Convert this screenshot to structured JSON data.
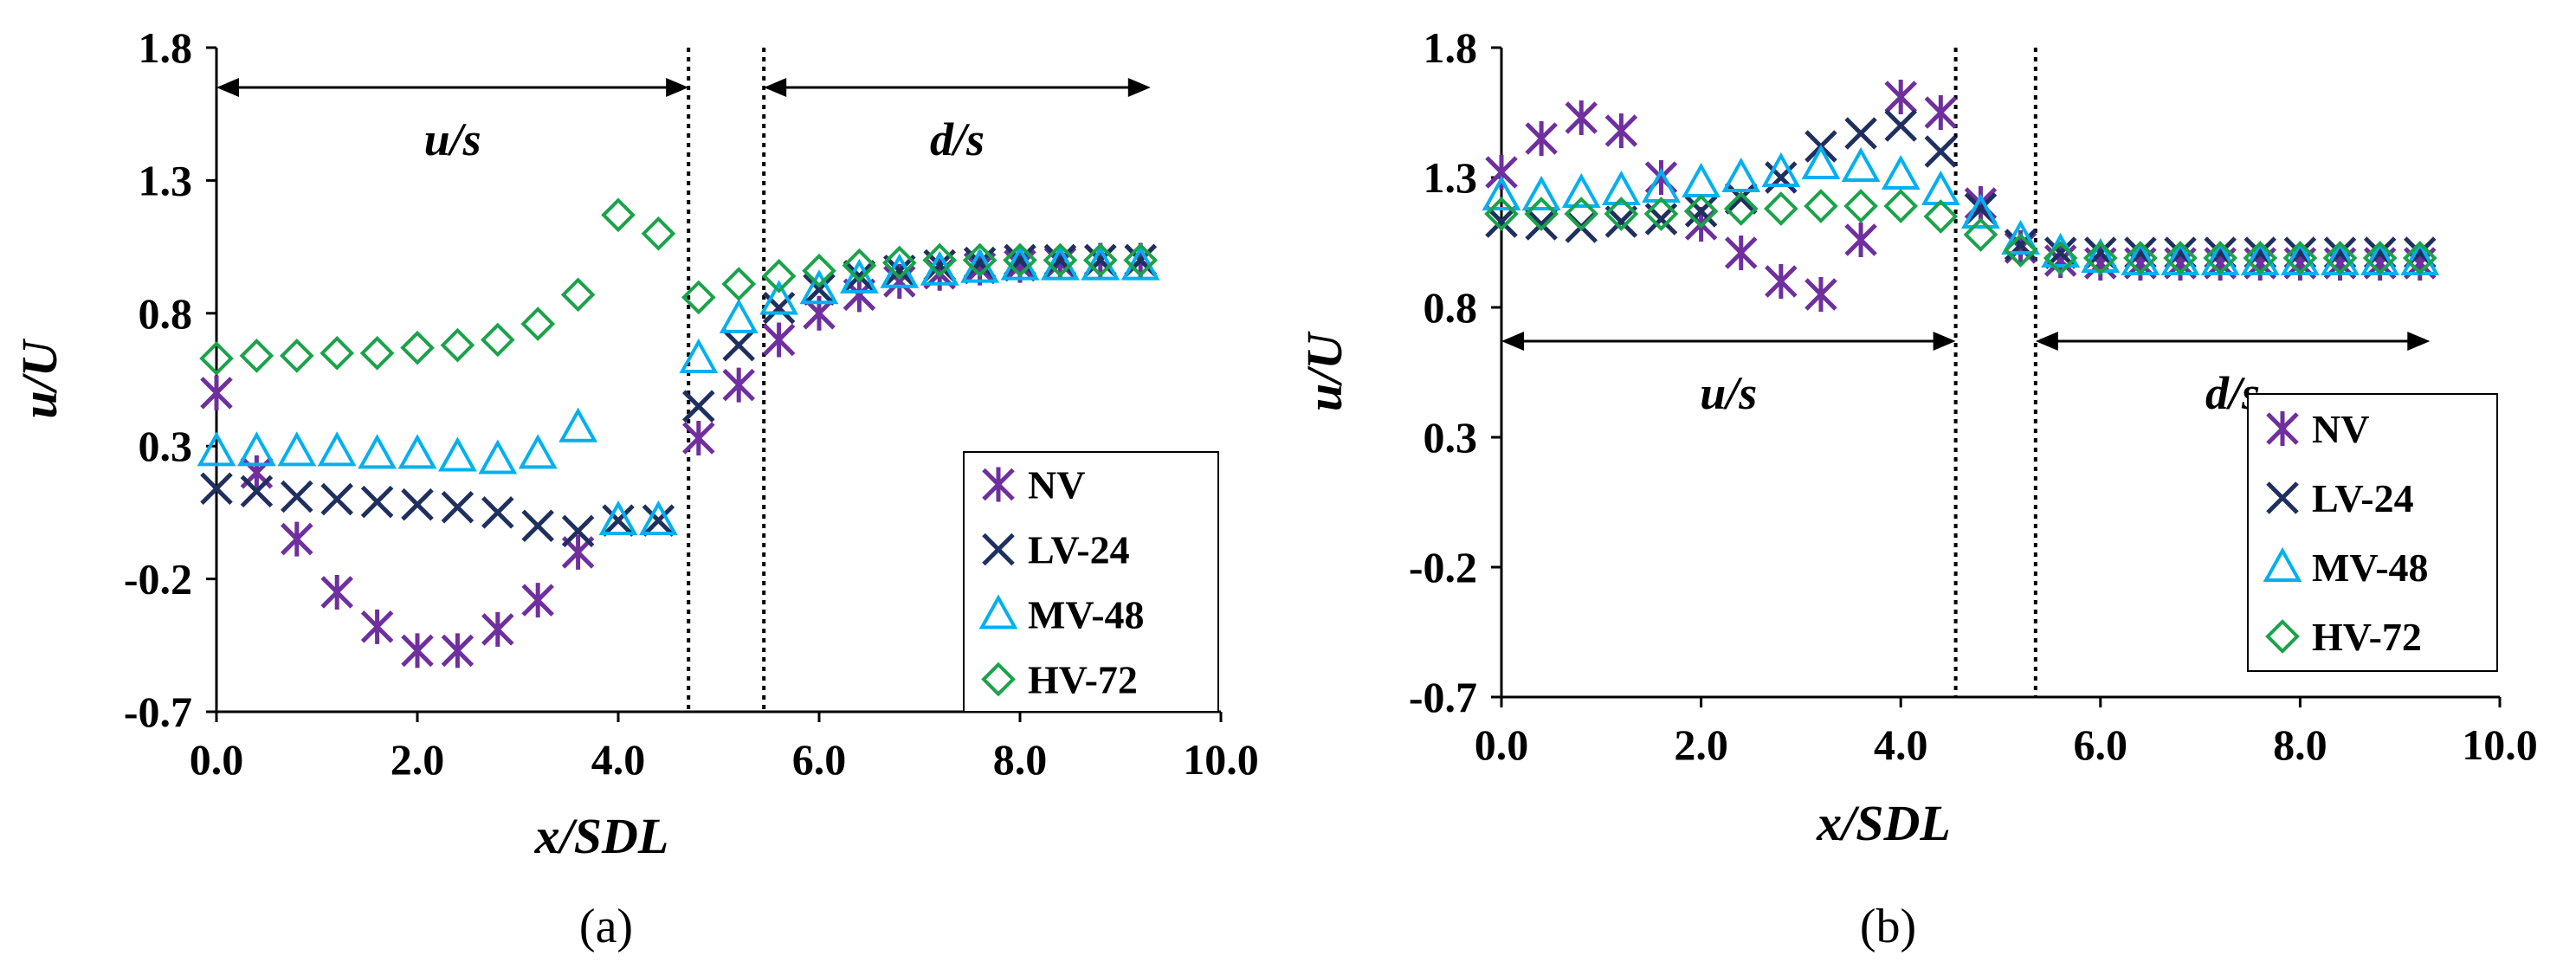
{
  "chart_data": [
    {
      "type": "scatter",
      "panel_label": "(a)",
      "xlabel": "x/SDL",
      "ylabel": "u/U",
      "xlim": [
        0,
        10
      ],
      "ylim": [
        -0.7,
        1.8
      ],
      "xticks": [
        "0.0",
        "2.0",
        "4.0",
        "6.0",
        "8.0",
        "10.0"
      ],
      "yticks": [
        "-0.7",
        "-0.2",
        "0.3",
        "0.8",
        "1.3",
        "1.8"
      ],
      "legend_position": "bottom-right",
      "vlines": [
        4.7,
        5.45
      ],
      "regions": [
        {
          "label": "u/s",
          "from": 0.0,
          "to": 4.7,
          "y": 1.65
        },
        {
          "label": "d/s",
          "from": 5.45,
          "to": 9.3,
          "y": 1.65
        }
      ],
      "series": [
        {
          "name": "NV",
          "marker": "asterisk",
          "color": "#6f2f9f",
          "x": [
            0.0,
            0.4,
            0.8,
            1.2,
            1.6,
            2.0,
            2.4,
            2.8,
            3.2,
            3.6,
            4.8,
            5.2,
            5.6,
            6.0,
            6.4,
            6.8,
            7.2,
            7.6,
            8.0,
            8.4,
            8.8,
            9.2
          ],
          "y": [
            0.5,
            0.2,
            -0.05,
            -0.25,
            -0.38,
            -0.47,
            -0.47,
            -0.39,
            -0.28,
            -0.1,
            0.33,
            0.53,
            0.7,
            0.8,
            0.87,
            0.92,
            0.95,
            0.97,
            0.98,
            0.99,
            1.0,
            1.0
          ]
        },
        {
          "name": "LV-24",
          "marker": "x",
          "color": "#1f2f5f",
          "x": [
            0.0,
            0.4,
            0.8,
            1.2,
            1.6,
            2.0,
            2.4,
            2.8,
            3.2,
            3.6,
            4.0,
            4.4,
            4.8,
            5.2,
            5.6,
            6.0,
            6.4,
            6.8,
            7.2,
            7.6,
            8.0,
            8.4,
            8.8,
            9.2
          ],
          "y": [
            0.14,
            0.13,
            0.11,
            0.1,
            0.09,
            0.08,
            0.07,
            0.05,
            0.0,
            -0.02,
            0.02,
            0.02,
            0.45,
            0.68,
            0.82,
            0.89,
            0.94,
            0.96,
            0.98,
            0.99,
            1.0,
            1.0,
            1.0,
            1.0
          ]
        },
        {
          "name": "MV-48",
          "marker": "triangle",
          "color": "#00b0f0",
          "x": [
            0.0,
            0.4,
            0.8,
            1.2,
            1.6,
            2.0,
            2.4,
            2.8,
            3.2,
            3.6,
            4.0,
            4.4,
            4.8,
            5.2,
            5.6,
            6.0,
            6.4,
            6.8,
            7.2,
            7.6,
            8.0,
            8.4,
            8.8,
            9.2
          ],
          "y": [
            0.28,
            0.28,
            0.28,
            0.28,
            0.27,
            0.27,
            0.26,
            0.25,
            0.27,
            0.37,
            0.02,
            0.02,
            0.63,
            0.78,
            0.85,
            0.89,
            0.93,
            0.95,
            0.96,
            0.97,
            0.98,
            0.98,
            0.98,
            0.98
          ]
        },
        {
          "name": "HV-72",
          "marker": "diamond",
          "color": "#1aa34a",
          "x": [
            0.0,
            0.4,
            0.8,
            1.2,
            1.6,
            2.0,
            2.4,
            2.8,
            3.2,
            3.6,
            4.0,
            4.4,
            4.8,
            5.2,
            5.6,
            6.0,
            6.4,
            6.8,
            7.2,
            7.6,
            8.0,
            8.4,
            8.8,
            9.2
          ],
          "y": [
            0.63,
            0.64,
            0.64,
            0.65,
            0.65,
            0.67,
            0.68,
            0.7,
            0.76,
            0.87,
            1.17,
            1.1,
            0.86,
            0.91,
            0.94,
            0.96,
            0.98,
            0.99,
            1.0,
            1.0,
            1.0,
            1.0,
            1.0,
            1.0
          ]
        }
      ]
    },
    {
      "type": "scatter",
      "panel_label": "(b)",
      "xlabel": "x/SDL",
      "ylabel": "u/U",
      "xlim": [
        0,
        10
      ],
      "ylim": [
        -0.7,
        1.8
      ],
      "xticks": [
        "0.0",
        "2.0",
        "4.0",
        "6.0",
        "8.0",
        "10.0"
      ],
      "yticks": [
        "-0.7",
        "-0.2",
        "0.3",
        "0.8",
        "1.3",
        "1.8"
      ],
      "legend_position": "bottom-right",
      "vlines": [
        4.55,
        5.35
      ],
      "regions": [
        {
          "label": "u/s",
          "from": 0.0,
          "to": 4.55,
          "y": 0.67
        },
        {
          "label": "d/s",
          "from": 5.35,
          "to": 9.3,
          "y": 0.67
        }
      ],
      "series": [
        {
          "name": "NV",
          "marker": "asterisk",
          "color": "#6f2f9f",
          "x": [
            0.0,
            0.4,
            0.8,
            1.2,
            1.6,
            2.0,
            2.4,
            2.8,
            3.2,
            3.6,
            4.0,
            4.4,
            4.8,
            5.2,
            5.6,
            6.0,
            6.4,
            6.8,
            7.2,
            7.6,
            8.0,
            8.4,
            8.8,
            9.2
          ],
          "y": [
            1.32,
            1.45,
            1.53,
            1.48,
            1.3,
            1.12,
            1.01,
            0.9,
            0.85,
            1.06,
            1.61,
            1.55,
            1.2,
            1.03,
            0.98,
            0.97,
            0.97,
            0.97,
            0.97,
            0.97,
            0.97,
            0.97,
            0.97,
            0.97
          ]
        },
        {
          "name": "LV-24",
          "marker": "x",
          "color": "#1f2f5f",
          "x": [
            0.0,
            0.4,
            0.8,
            1.2,
            1.6,
            2.0,
            2.4,
            2.8,
            3.2,
            3.6,
            4.0,
            4.4,
            4.8,
            5.2,
            5.6,
            6.0,
            6.4,
            6.8,
            7.2,
            7.6,
            8.0,
            8.4,
            8.8,
            9.2
          ],
          "y": [
            1.13,
            1.12,
            1.11,
            1.13,
            1.14,
            1.17,
            1.22,
            1.3,
            1.42,
            1.47,
            1.5,
            1.4,
            1.18,
            1.04,
            1.01,
            1.01,
            1.01,
            1.01,
            1.01,
            1.01,
            1.01,
            1.01,
            1.01,
            1.01
          ]
        },
        {
          "name": "MV-48",
          "marker": "triangle",
          "color": "#00b0f0",
          "x": [
            0.0,
            0.4,
            0.8,
            1.2,
            1.6,
            2.0,
            2.4,
            2.8,
            3.2,
            3.6,
            4.0,
            4.4,
            4.8,
            5.2,
            5.6,
            6.0,
            6.4,
            6.8,
            7.2,
            7.6,
            8.0,
            8.4,
            8.8,
            9.2
          ],
          "y": [
            1.23,
            1.23,
            1.24,
            1.25,
            1.26,
            1.28,
            1.3,
            1.32,
            1.35,
            1.34,
            1.31,
            1.25,
            1.16,
            1.06,
            1.01,
            0.99,
            0.98,
            0.98,
            0.98,
            0.98,
            0.98,
            0.98,
            0.98,
            0.98
          ]
        },
        {
          "name": "HV-72",
          "marker": "diamond",
          "color": "#1aa34a",
          "x": [
            0.0,
            0.4,
            0.8,
            1.2,
            1.6,
            2.0,
            2.4,
            2.8,
            3.2,
            3.6,
            4.0,
            4.4,
            4.8,
            5.2,
            5.6,
            6.0,
            6.4,
            6.8,
            7.2,
            7.6,
            8.0,
            8.4,
            8.8,
            9.2
          ],
          "y": [
            1.16,
            1.16,
            1.16,
            1.16,
            1.16,
            1.17,
            1.18,
            1.18,
            1.19,
            1.19,
            1.19,
            1.15,
            1.08,
            1.02,
            0.99,
            0.99,
            0.99,
            0.99,
            0.99,
            0.99,
            0.99,
            0.99,
            0.99,
            0.99
          ]
        }
      ]
    }
  ]
}
